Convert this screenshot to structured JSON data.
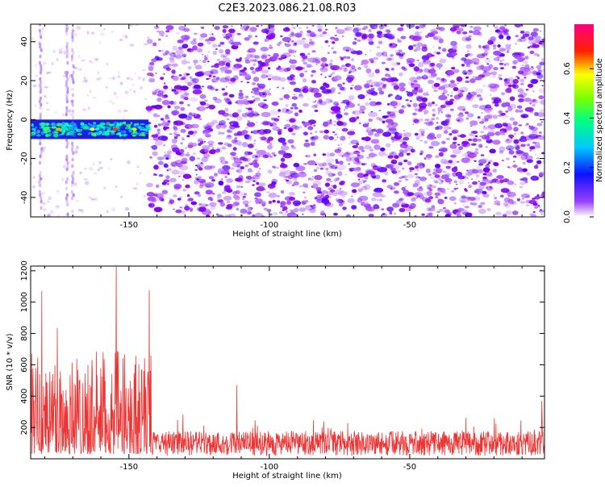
{
  "title": "C2E3.2023.086.21.08.R03",
  "chart_data": [
    {
      "type": "heatmap",
      "xlabel": "Height of straight line (km)",
      "ylabel": "Frequency (Hz)",
      "xlim": [
        -185,
        -2
      ],
      "ylim": [
        -50,
        49
      ],
      "xticks": [
        -150,
        -100,
        -50
      ],
      "yticks": [
        -40,
        -20,
        0,
        20,
        40
      ],
      "colorbar": {
        "label": "Normalized spectral amplitude",
        "range": [
          0.0,
          0.78
        ],
        "ticks": [
          0.0,
          0.2,
          0.4,
          0.6
        ],
        "colors": [
          "#ffffff",
          "#8a00ff",
          "#0000ff",
          "#00ffff",
          "#00ff00",
          "#ffff00",
          "#ff0000",
          "#ff0080"
        ]
      },
      "signal_band": {
        "x_range": [
          -185,
          -143
        ],
        "freq_center": -5,
        "freq_halfwidth": 5,
        "peak_amplitude": 0.7
      },
      "noise_onset_x": -143,
      "noise_colors": [
        "#8a00ff",
        "#a04dff",
        "#c080ff",
        "#7a00e6",
        "#5a00ff"
      ]
    },
    {
      "type": "line",
      "xlabel": "Height of straight line (km)",
      "ylabel": "SNR (10 * v/v)",
      "xlim": [
        -185,
        -2
      ],
      "ylim": [
        0,
        1230
      ],
      "xticks": [
        -150,
        -100,
        -50
      ],
      "yticks": [
        200,
        400,
        600,
        800,
        1000,
        1200
      ],
      "color": "#ee3333",
      "segments": [
        {
          "x_range": [
            -185,
            -142
          ],
          "mean": 260,
          "amplitude": 550
        },
        {
          "x_range": [
            -142,
            -2
          ],
          "mean": 130,
          "amplitude": 120
        }
      ],
      "peaks": [
        {
          "x": -154.5,
          "y": 1230
        },
        {
          "x": -142.8,
          "y": 1075
        },
        {
          "x": -181,
          "y": 1070
        },
        {
          "x": -175.5,
          "y": 835
        },
        {
          "x": -111.5,
          "y": 470
        },
        {
          "x": -3,
          "y": 370
        }
      ]
    }
  ]
}
